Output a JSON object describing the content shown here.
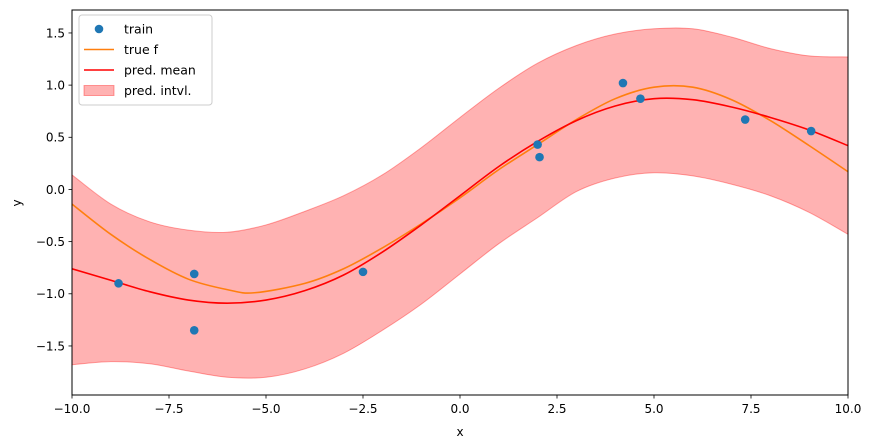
{
  "chart_data": {
    "type": "line",
    "title": "",
    "xlabel": "x",
    "ylabel": "y",
    "xlim": [
      -10,
      10
    ],
    "ylim": [
      -1.97,
      1.72
    ],
    "xticks": [
      -10,
      -7.5,
      -5,
      -2.5,
      0,
      2.5,
      5,
      7.5,
      10
    ],
    "xtick_labels": [
      "−10.0",
      "−7.5",
      "−5.0",
      "−2.5",
      "0.0",
      "2.5",
      "5.0",
      "7.5",
      "10.0"
    ],
    "yticks": [
      -1.5,
      -1.0,
      -0.5,
      0.0,
      0.5,
      1.0,
      1.5
    ],
    "ytick_labels": [
      "−1.5",
      "−1.0",
      "−0.5",
      "0.0",
      "0.5",
      "1.0",
      "1.5"
    ],
    "grid": false,
    "legend_position": "top-left",
    "series": [
      {
        "name": "train",
        "kind": "scatter",
        "color": "#1f77b4",
        "x": [
          -8.8,
          -6.85,
          -6.85,
          -2.5,
          2.0,
          2.05,
          4.2,
          4.65,
          7.35,
          9.05
        ],
        "y": [
          -0.9,
          -0.81,
          -1.35,
          -0.79,
          0.43,
          0.31,
          1.02,
          0.87,
          0.67,
          0.56
        ]
      },
      {
        "name": "true f",
        "kind": "line",
        "color": "#ff7f0e",
        "x": [
          -10,
          -9,
          -8,
          -7,
          -6,
          -5.3,
          -4,
          -3,
          -2,
          -1,
          0,
          1,
          2,
          3,
          4,
          5,
          6,
          7,
          8,
          9,
          10
        ],
        "y": [
          -0.14,
          -0.43,
          -0.67,
          -0.86,
          -0.96,
          -0.99,
          -0.9,
          -0.76,
          -0.56,
          -0.33,
          -0.08,
          0.19,
          0.43,
          0.67,
          0.87,
          0.98,
          0.98,
          0.86,
          0.66,
          0.42,
          0.17
        ]
      },
      {
        "name": "pred. mean",
        "kind": "line",
        "color": "#ff0000",
        "x": [
          -10,
          -9,
          -8,
          -7,
          -6,
          -5,
          -4,
          -3,
          -2,
          -1,
          0,
          1,
          2,
          3,
          4,
          5,
          6,
          7,
          8,
          9,
          10
        ],
        "y": [
          -0.76,
          -0.87,
          -0.98,
          -1.06,
          -1.09,
          -1.06,
          -0.97,
          -0.82,
          -0.6,
          -0.34,
          -0.06,
          0.22,
          0.46,
          0.66,
          0.8,
          0.87,
          0.86,
          0.79,
          0.69,
          0.57,
          0.42
        ]
      },
      {
        "name": "pred. intvl.",
        "kind": "band",
        "color": "#ff0000",
        "x": [
          -10,
          -9,
          -8,
          -7,
          -6,
          -5,
          -4,
          -3,
          -2,
          -1,
          0,
          1,
          2,
          3,
          4,
          5,
          6,
          7,
          8,
          9,
          10
        ],
        "lower": [
          -1.68,
          -1.65,
          -1.67,
          -1.74,
          -1.8,
          -1.8,
          -1.72,
          -1.57,
          -1.35,
          -1.1,
          -0.81,
          -0.52,
          -0.27,
          -0.02,
          0.11,
          0.16,
          0.13,
          0.05,
          -0.06,
          -0.22,
          -0.43
        ],
        "upper": [
          0.14,
          -0.14,
          -0.31,
          -0.39,
          -0.41,
          -0.34,
          -0.21,
          -0.06,
          0.14,
          0.4,
          0.69,
          0.97,
          1.21,
          1.38,
          1.49,
          1.54,
          1.54,
          1.46,
          1.35,
          1.28,
          1.27
        ]
      }
    ]
  }
}
